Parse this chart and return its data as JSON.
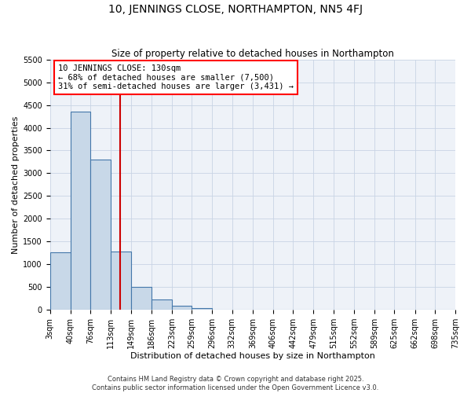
{
  "title": "10, JENNINGS CLOSE, NORTHAMPTON, NN5 4FJ",
  "subtitle": "Size of property relative to detached houses in Northampton",
  "xlabel": "Distribution of detached houses by size in Northampton",
  "ylabel": "Number of detached properties",
  "bin_edges": [
    3,
    40,
    76,
    113,
    149,
    186,
    223,
    259,
    296,
    332,
    369,
    406,
    442,
    479,
    515,
    552,
    589,
    625,
    662,
    698,
    735
  ],
  "bar_heights": [
    1270,
    4350,
    3300,
    1280,
    500,
    230,
    90,
    30,
    0,
    0,
    0,
    0,
    0,
    0,
    0,
    0,
    0,
    0,
    0,
    0
  ],
  "bar_color": "#c8d8e8",
  "bar_edge_color": "#4477aa",
  "property_line_x": 130,
  "property_line_color": "#cc0000",
  "annotation_line1": "10 JENNINGS CLOSE: 130sqm",
  "annotation_line2": "← 68% of detached houses are smaller (7,500)",
  "annotation_line3": "31% of semi-detached houses are larger (3,431) →",
  "ylim": [
    0,
    5500
  ],
  "yticks": [
    0,
    500,
    1000,
    1500,
    2000,
    2500,
    3000,
    3500,
    4000,
    4500,
    5000,
    5500
  ],
  "tick_labels": [
    "3sqm",
    "40sqm",
    "76sqm",
    "113sqm",
    "149sqm",
    "186sqm",
    "223sqm",
    "259sqm",
    "296sqm",
    "332sqm",
    "369sqm",
    "406sqm",
    "442sqm",
    "479sqm",
    "515sqm",
    "552sqm",
    "589sqm",
    "625sqm",
    "662sqm",
    "698sqm",
    "735sqm"
  ],
  "grid_color": "#c8d4e4",
  "background_color": "#eef2f8",
  "footer_line1": "Contains HM Land Registry data © Crown copyright and database right 2025.",
  "footer_line2": "Contains public sector information licensed under the Open Government Licence v3.0.",
  "title_fontsize": 10,
  "subtitle_fontsize": 8.5,
  "axis_label_fontsize": 8,
  "tick_fontsize": 7,
  "annotation_fontsize": 7.5,
  "footer_fontsize": 6
}
